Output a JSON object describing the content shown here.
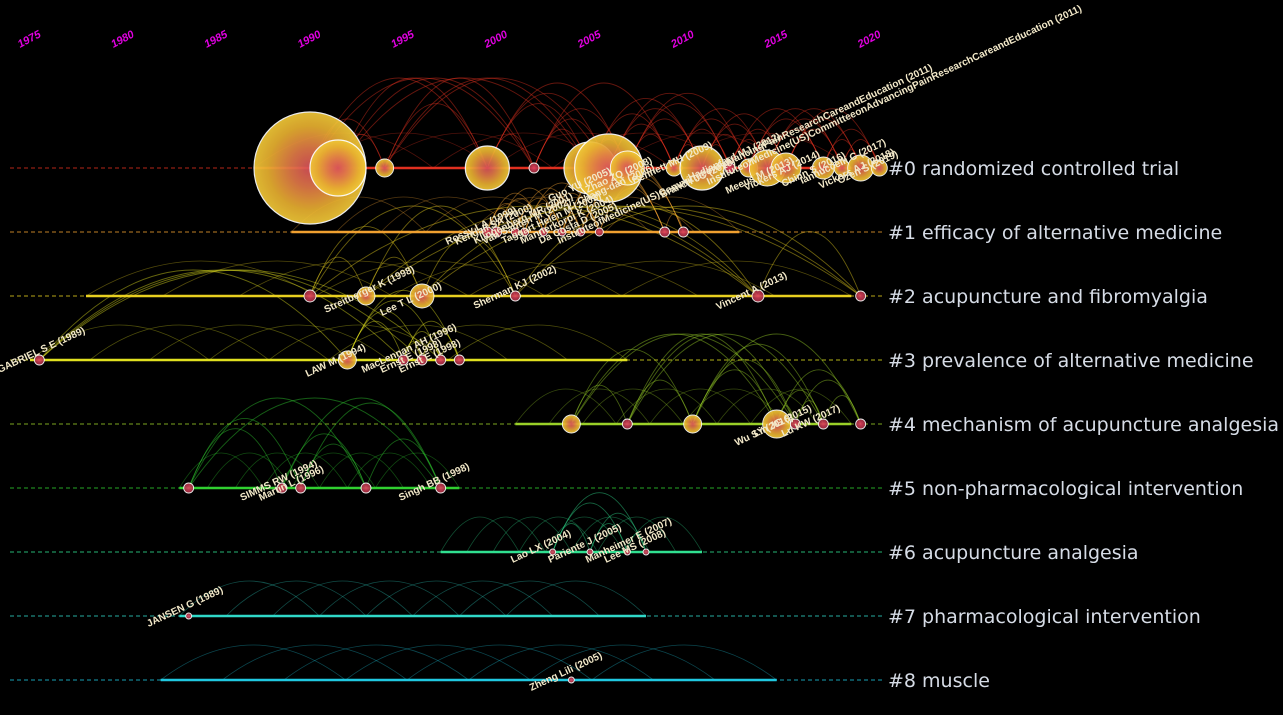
{
  "colors": {
    "background": "#000000",
    "year_tick": "#e000e0",
    "cluster_label": "#d6dce6"
  },
  "years": [
    "1975",
    "1980",
    "1985",
    "1990",
    "1995",
    "2000",
    "2005",
    "2010",
    "2015",
    "2020"
  ],
  "clusters": [
    {
      "id": 0,
      "label": "#0 randomized controlled trial",
      "color": "#e03020",
      "span": [
        1987,
        2019
      ],
      "nodes": [
        {
          "year": 1990,
          "size": 56,
          "name": ""
        },
        {
          "year": 1991.5,
          "size": 28,
          "name": ""
        },
        {
          "year": 1994,
          "size": 9,
          "name": ""
        },
        {
          "year": 1999.5,
          "size": 22,
          "name": ""
        },
        {
          "year": 2002,
          "size": 5,
          "name": ""
        },
        {
          "year": 2005,
          "size": 26,
          "name": "Guo YU (2005)"
        },
        {
          "year": 2006,
          "size": 34,
          "name": "Li Chang-dan (2006)"
        },
        {
          "year": 2007,
          "size": 17,
          "name": "Zhao ZQ (2008)"
        },
        {
          "year": 2009.5,
          "size": 8,
          "name": "Bennett MH (2009)"
        },
        {
          "year": 2011,
          "size": 22,
          "name": "Branch JC (2010)"
        },
        {
          "year": 2012.5,
          "size": 5,
          "name": "Hadianfard MJ (2012)"
        },
        {
          "year": 2013.5,
          "size": 9,
          "name": "InstituteofMedicine(US)CommitteeonAdvancingPainResearchCareandEducation (2011)"
        },
        {
          "year": 2014.5,
          "size": 18,
          "name": "Meeus M (2013)"
        },
        {
          "year": 2015.5,
          "size": 15,
          "name": "Vickers AJ (2014)"
        },
        {
          "year": 2017.5,
          "size": 11,
          "name": "Chinn S (2016)"
        },
        {
          "year": 2018.5,
          "size": 8,
          "name": "Iannuccelli C (2017)"
        },
        {
          "year": 2019.5,
          "size": 13,
          "name": "Vickers AJ (2018)"
        },
        {
          "year": 2020.5,
          "size": 8,
          "name": "Ozen S (2019)"
        }
      ]
    },
    {
      "id": 1,
      "label": "#1 efficacy of alternative medicine",
      "color": "#f0a030",
      "span": [
        1989,
        2013
      ],
      "nodes": [
        {
          "year": 1999.5,
          "size": 5,
          "name": "Rossy LA (1999)"
        },
        {
          "year": 2000,
          "size": 5,
          "name": "Kendall SA (2000)"
        },
        {
          "year": 2001,
          "size": 4,
          "name": "Klingenberg MR (2001)"
        },
        {
          "year": 2001.5,
          "size": 4,
          "name": "van Santen M (2002)"
        },
        {
          "year": 2002.5,
          "size": 4,
          "name": "Taggart Helen M (2003)"
        },
        {
          "year": 2003.5,
          "size": 4,
          "name": "Mannerkorpi K (2004)"
        },
        {
          "year": 2004.5,
          "size": 4,
          "name": "Da Costa D (2005)"
        },
        {
          "year": 2005.5,
          "size": 4,
          "name": "InstituteofMedicine(US)CommitteeonAdvancingPainResearchCareandEducation (2011)"
        },
        {
          "year": 2009,
          "size": 5,
          "name": ""
        },
        {
          "year": 2010,
          "size": 5,
          "name": ""
        }
      ]
    },
    {
      "id": 2,
      "label": "#2 acupuncture and fibromyalgia",
      "color": "#e8d020",
      "span": [
        1978,
        2019
      ],
      "nodes": [
        {
          "year": 1990,
          "size": 6,
          "name": ""
        },
        {
          "year": 1993,
          "size": 9,
          "name": "Streitberger K (1998)"
        },
        {
          "year": 1996,
          "size": 12,
          "name": "Lee T L (2000)"
        },
        {
          "year": 2001,
          "size": 5,
          "name": "Sherman KJ (2002)"
        },
        {
          "year": 2014,
          "size": 6,
          "name": "Vincent A (2013)"
        },
        {
          "year": 2019.5,
          "size": 5,
          "name": ""
        }
      ]
    },
    {
      "id": 3,
      "label": "#3 prevalence of alternative medicine",
      "color": "#e0e020",
      "span": [
        1975,
        2007
      ],
      "nodes": [
        {
          "year": 1975.5,
          "size": 5,
          "name": "GABRIEL S E (1989)"
        },
        {
          "year": 1992,
          "size": 9,
          "name": "LAW M (1994)"
        },
        {
          "year": 1995,
          "size": 5,
          "name": "MacLennan AH (1996)"
        },
        {
          "year": 1996,
          "size": 5,
          "name": "Ernst E (1998)"
        },
        {
          "year": 1997,
          "size": 5,
          "name": "Ernst E (1998)"
        },
        {
          "year": 1998,
          "size": 5,
          "name": ""
        }
      ]
    },
    {
      "id": 4,
      "label": "#4 mechanism of acupuncture analgesia",
      "color": "#9ad028",
      "span": [
        2001,
        2019
      ],
      "nodes": [
        {
          "year": 2004,
          "size": 9,
          "name": ""
        },
        {
          "year": 2007,
          "size": 5,
          "name": ""
        },
        {
          "year": 2010.5,
          "size": 9,
          "name": ""
        },
        {
          "year": 2015,
          "size": 14,
          "name": "Wu SY (2016)"
        },
        {
          "year": 2016,
          "size": 5,
          "name": "Lin JG (2015)"
        },
        {
          "year": 2017.5,
          "size": 5,
          "name": "Lu KW (2017)"
        },
        {
          "year": 2019.5,
          "size": 5,
          "name": ""
        }
      ]
    },
    {
      "id": 5,
      "label": "#5 non-pharmacological intervention",
      "color": "#30d030",
      "span": [
        1983,
        1998
      ],
      "nodes": [
        {
          "year": 1983.5,
          "size": 5,
          "name": ""
        },
        {
          "year": 1988.5,
          "size": 5,
          "name": "SIMMS RW (1994)"
        },
        {
          "year": 1989.5,
          "size": 5,
          "name": "Martin L (1996)"
        },
        {
          "year": 1993,
          "size": 5,
          "name": ""
        },
        {
          "year": 1997,
          "size": 5,
          "name": "Singh BB (1998)"
        }
      ]
    },
    {
      "id": 6,
      "label": "#6 acupuncture analgesia",
      "color": "#30e090",
      "span": [
        1997,
        2011
      ],
      "nodes": [
        {
          "year": 2003,
          "size": 3,
          "name": "Lao LX (2004)"
        },
        {
          "year": 2005,
          "size": 3,
          "name": "Pariente J (2005)"
        },
        {
          "year": 2007,
          "size": 3,
          "name": "Manheimer E (2007)"
        },
        {
          "year": 2008,
          "size": 3,
          "name": "Lee MS (2008)"
        }
      ]
    },
    {
      "id": 7,
      "label": "#7 pharmacological intervention",
      "color": "#30d8c8",
      "span": [
        1983,
        2008
      ],
      "nodes": [
        {
          "year": 1983.5,
          "size": 3,
          "name": "JANSEN G (1989)"
        }
      ]
    },
    {
      "id": 8,
      "label": "#8 muscle",
      "color": "#20c8e0",
      "span": [
        1982,
        2015
      ],
      "nodes": [
        {
          "year": 2004,
          "size": 3,
          "name": "Zheng Lili (2005)"
        }
      ]
    }
  ]
}
